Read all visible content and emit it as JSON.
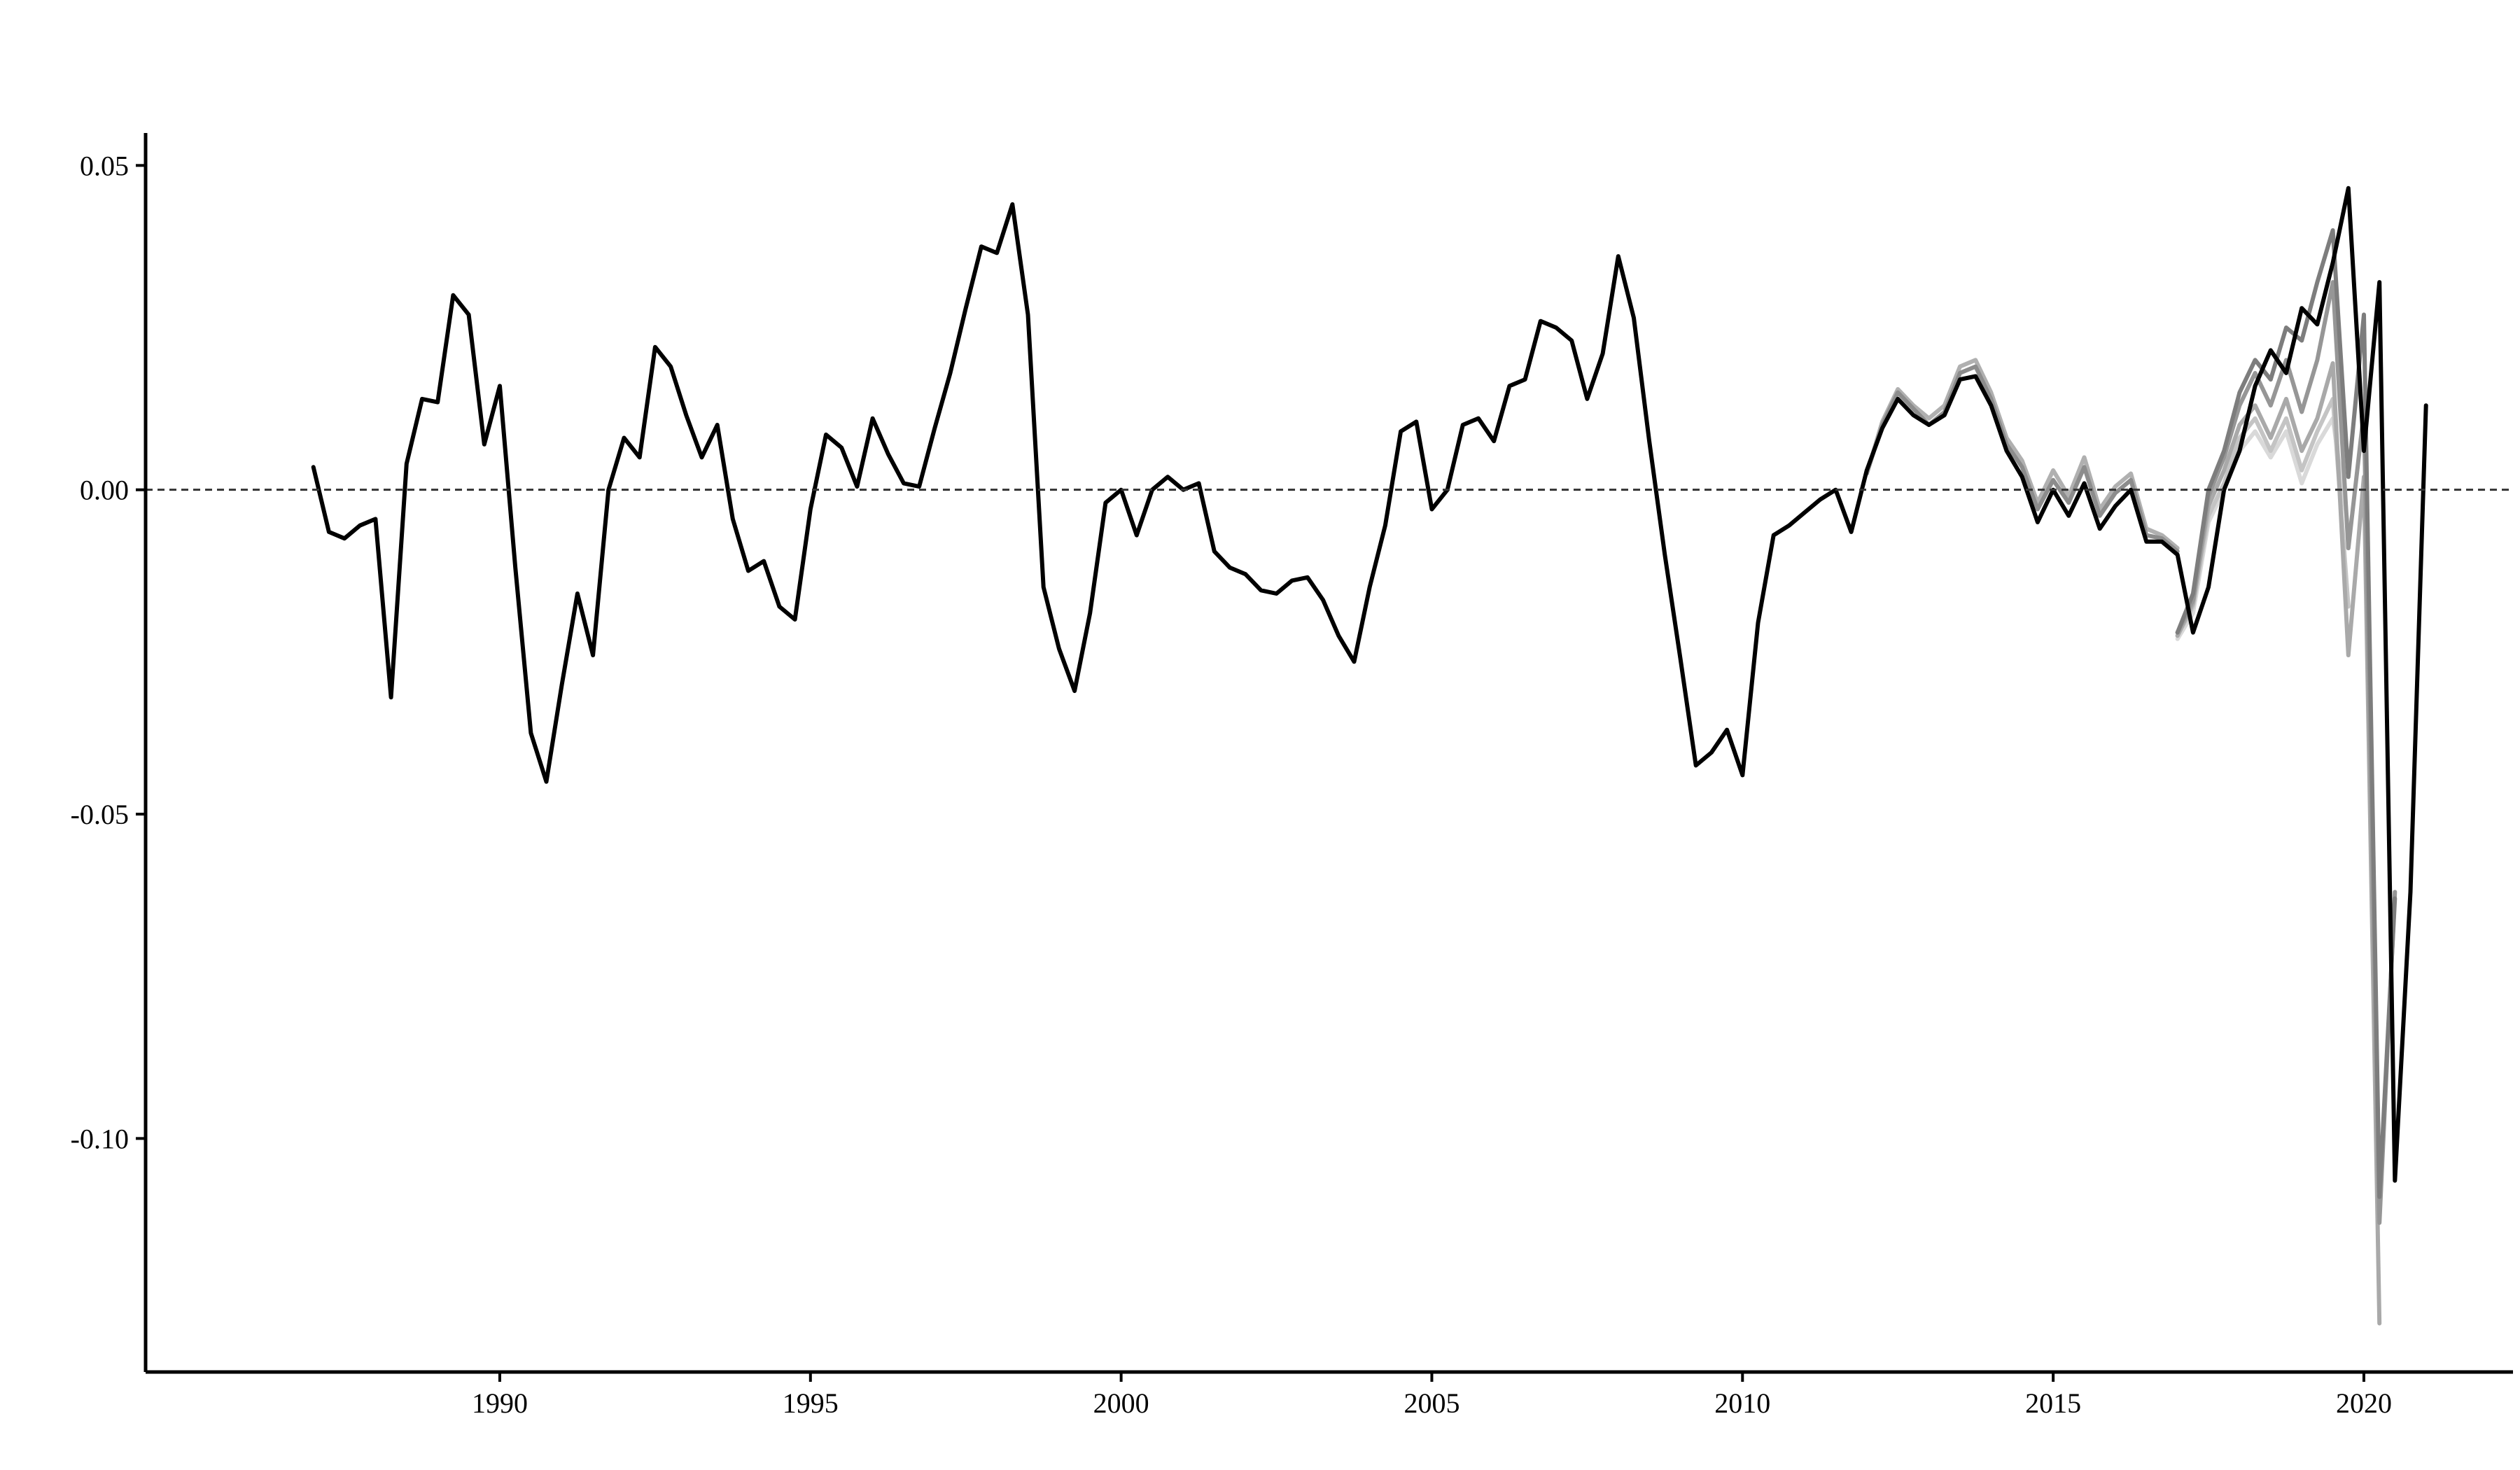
{
  "chart_data": {
    "type": "line",
    "title": "",
    "xlabel": "",
    "ylabel": "",
    "xlim": [
      1984.3,
      2022.4
    ],
    "ylim": [
      -0.136,
      0.055
    ],
    "x_ticks": [
      1990,
      1995,
      2000,
      2005,
      2010,
      2015,
      2020
    ],
    "x_tick_labels": [
      "1990",
      "1995",
      "2000",
      "2005",
      "2010",
      "2015",
      "2020"
    ],
    "y_ticks": [
      0.05,
      0.0,
      -0.05,
      -0.1
    ],
    "y_tick_labels": [
      "0.05",
      "0.00",
      "-0.05",
      "-0.10"
    ],
    "reference_line": {
      "y": 0.0,
      "style": "dashed"
    },
    "grid": false,
    "legend": "none",
    "main_series_color": "#000000",
    "x_start": 1987.0,
    "x_step": 0.25,
    "main_series": [
      0.0035,
      -0.0065,
      -0.0075,
      -0.0055,
      -0.0045,
      -0.032,
      0.004,
      0.014,
      0.0135,
      0.03,
      0.027,
      0.007,
      0.016,
      -0.012,
      -0.0375,
      -0.045,
      -0.03,
      -0.016,
      -0.0255,
      0.0,
      0.008,
      0.005,
      0.022,
      0.019,
      0.0115,
      0.005,
      0.01,
      -0.0045,
      -0.0125,
      -0.011,
      -0.018,
      -0.02,
      -0.003,
      0.0085,
      0.0065,
      0.0005,
      0.011,
      0.0055,
      0.001,
      0.0005,
      0.0095,
      0.018,
      0.028,
      0.0375,
      0.0365,
      0.044,
      0.027,
      -0.015,
      -0.0245,
      -0.031,
      -0.019,
      -0.002,
      0.0,
      -0.007,
      0.0,
      0.002,
      0.0,
      0.001,
      -0.0095,
      -0.012,
      -0.013,
      -0.0155,
      -0.016,
      -0.014,
      -0.0135,
      -0.017,
      -0.0225,
      -0.0265,
      -0.015,
      -0.0055,
      0.009,
      0.0105,
      -0.003,
      0.0,
      0.01,
      0.011,
      0.0075,
      0.016,
      0.017,
      0.026,
      0.025,
      0.023,
      0.014,
      0.021,
      0.036,
      0.0265,
      0.0075,
      -0.01,
      -0.026,
      -0.0425,
      -0.0405,
      -0.037,
      -0.044,
      -0.0205,
      -0.007,
      -0.0055,
      -0.0035,
      -0.0015,
      0.0,
      -0.0065,
      0.003,
      0.0095,
      0.014,
      0.0115,
      0.01,
      0.0115,
      0.017,
      0.0175,
      0.013,
      0.006,
      0.002,
      -0.005,
      0.0,
      -0.004,
      0.001,
      -0.006,
      -0.0025,
      0.0,
      -0.008,
      -0.008,
      -0.01,
      -0.022,
      -0.015,
      0.0,
      0.006,
      0.016,
      0.0215,
      0.018,
      0.028,
      0.0255,
      0.035,
      0.0465,
      0.006,
      0.032,
      -0.1065,
      -0.062,
      0.013
    ],
    "vintage_series": [
      {
        "color": "#d9d9d9",
        "x_start": 2017.0,
        "values": [
          -0.023,
          -0.019,
          -0.005,
          0.0,
          0.006,
          0.009,
          0.005,
          0.009,
          0.001,
          0.007,
          0.011,
          -0.006
        ]
      },
      {
        "color": "#c4c4c4",
        "x_start": 2017.0,
        "values": [
          -0.0225,
          -0.018,
          -0.004,
          0.001,
          0.008,
          0.011,
          0.006,
          0.011,
          0.003,
          0.009,
          0.014,
          -0.018
        ]
      },
      {
        "color": "#a9a9a9",
        "x_start": 2017.0,
        "values": [
          -0.0225,
          -0.0175,
          -0.0025,
          0.003,
          0.01,
          0.013,
          0.008,
          0.014,
          0.006,
          0.011,
          0.0195,
          -0.0255,
          0.002,
          -0.1285
        ]
      },
      {
        "color": "#969696",
        "x_start": 2017.0,
        "values": [
          -0.022,
          -0.017,
          -0.001,
          0.005,
          0.013,
          0.018,
          0.013,
          0.02,
          0.012,
          0.02,
          0.032,
          -0.009,
          0.012,
          -0.113,
          -0.062
        ]
      },
      {
        "color": "#7d7d7d",
        "x_start": 2017.0,
        "values": [
          -0.022,
          -0.016,
          0.0,
          0.006,
          0.015,
          0.02,
          0.017,
          0.025,
          0.023,
          0.032,
          0.04,
          0.002,
          0.027,
          -0.109,
          -0.063
        ]
      },
      {
        "color": "#b0b0b0",
        "x_start": 2012.0,
        "values": [
          0.0025,
          0.0105,
          0.0155,
          0.013,
          0.011,
          0.013,
          0.019,
          0.02,
          0.015,
          0.008,
          0.0045,
          -0.002,
          0.003,
          -0.001,
          0.005,
          -0.003,
          0.0005,
          0.0025,
          -0.006,
          -0.007,
          -0.009
        ]
      },
      {
        "color": "#8c8c8c",
        "x_start": 2012.0,
        "values": [
          0.0025,
          0.01,
          0.015,
          0.0125,
          0.01,
          0.012,
          0.018,
          0.019,
          0.014,
          0.007,
          0.0035,
          -0.003,
          0.0015,
          -0.002,
          0.0035,
          -0.004,
          -0.0005,
          0.0015,
          -0.007,
          -0.0075,
          -0.0095
        ]
      }
    ]
  }
}
